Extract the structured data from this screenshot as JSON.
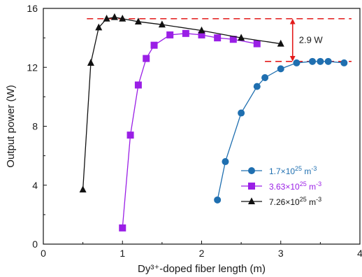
{
  "chart_data": {
    "type": "line",
    "xlabel": "Dy³⁺-doped fiber length (m)",
    "ylabel": "Output power (W)",
    "xlim": [
      0,
      4
    ],
    "ylim": [
      0,
      16
    ],
    "xticks": [
      0,
      1,
      2,
      3,
      4
    ],
    "yticks": [
      0,
      4,
      8,
      12,
      16
    ],
    "grid": false,
    "legend_position": "bottom-right",
    "series": [
      {
        "name_parts": {
          "base": "1.7×10",
          "exp": "25",
          "unit": " m",
          "unit_exp": "-3"
        },
        "color": "#1f6fb0",
        "marker": "circle",
        "x": [
          2.2,
          2.3,
          2.5,
          2.7,
          2.8,
          3.0,
          3.2,
          3.4,
          3.5,
          3.6,
          3.8
        ],
        "y": [
          3.0,
          5.6,
          8.9,
          10.7,
          11.3,
          11.9,
          12.3,
          12.4,
          12.4,
          12.4,
          12.3
        ]
      },
      {
        "name_parts": {
          "base": "3.63×10",
          "exp": "25",
          "unit": " m",
          "unit_exp": "-3"
        },
        "color": "#9a1fe6",
        "marker": "square",
        "x": [
          1.0,
          1.1,
          1.2,
          1.3,
          1.4,
          1.6,
          1.8,
          2.0,
          2.2,
          2.4,
          2.7
        ],
        "y": [
          1.1,
          7.4,
          10.8,
          12.6,
          13.5,
          14.2,
          14.3,
          14.2,
          14.0,
          13.9,
          13.6
        ]
      },
      {
        "name_parts": {
          "base": "7.26×10",
          "exp": "25",
          "unit": " m",
          "unit_exp": "-3"
        },
        "color": "#111111",
        "marker": "triangle",
        "x": [
          0.5,
          0.6,
          0.7,
          0.8,
          0.9,
          1.0,
          1.2,
          1.5,
          2.0,
          2.5,
          3.0
        ],
        "y": [
          3.7,
          12.3,
          14.7,
          15.3,
          15.4,
          15.3,
          15.1,
          14.9,
          14.5,
          14.0,
          13.6
        ]
      }
    ],
    "reference_lines": [
      {
        "y": 15.3,
        "x_start": 0.55,
        "x_end": 4.0,
        "color": "#e31b1b",
        "style": "dashed"
      },
      {
        "y": 12.4,
        "x_start": 2.8,
        "x_end": 4.0,
        "color": "#e31b1b",
        "style": "dashed"
      }
    ],
    "annotation": {
      "text": "2.9 W",
      "x": 3.15,
      "y_from": 12.4,
      "y_to": 15.3,
      "color": "#e31b1b"
    }
  }
}
